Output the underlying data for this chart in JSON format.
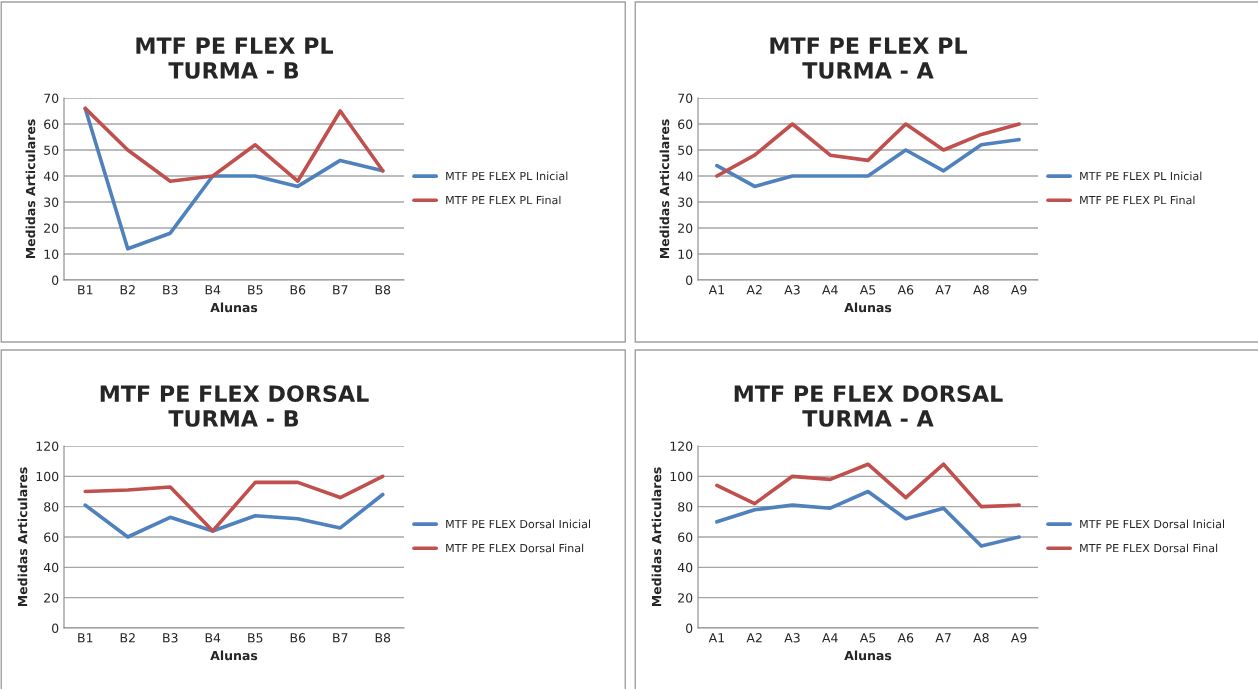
{
  "chart_data": [
    {
      "type": "line",
      "title": "MTF PE FLEX PL\nTURMA - B",
      "xlabel": "Alunas",
      "ylabel": "Medidas Articulares",
      "categories": [
        "B1",
        "B2",
        "B3",
        "B4",
        "B5",
        "B6",
        "B7",
        "B8"
      ],
      "series": [
        {
          "name": "MTF PE FLEX PL Inicial",
          "color": "#4f81bd",
          "values": [
            66,
            12,
            18,
            40,
            40,
            36,
            46,
            42
          ]
        },
        {
          "name": "MTF PE FLEX PL Final",
          "color": "#c0504d",
          "values": [
            66,
            50,
            38,
            40,
            52,
            38,
            65,
            42
          ]
        }
      ],
      "ylim": [
        0,
        70
      ],
      "yticks": [
        0,
        10,
        20,
        30,
        40,
        50,
        60,
        70
      ],
      "grid": "y",
      "legend": "right",
      "marker": "none",
      "line_style": "solid"
    },
    {
      "type": "line",
      "title": "MTF PE FLEX PL\nTURMA - A",
      "xlabel": "Alunas",
      "ylabel": "Medidas Articulares",
      "categories": [
        "A1",
        "A2",
        "A3",
        "A4",
        "A5",
        "A6",
        "A7",
        "A8",
        "A9"
      ],
      "series": [
        {
          "name": "MTF PE FLEX PL Inicial",
          "color": "#4f81bd",
          "values": [
            44,
            36,
            40,
            40,
            40,
            50,
            42,
            52,
            54
          ]
        },
        {
          "name": "MTF PE FLEX PL Final",
          "color": "#c0504d",
          "values": [
            40,
            48,
            60,
            48,
            46,
            60,
            50,
            56,
            60
          ]
        }
      ],
      "ylim": [
        0,
        70
      ],
      "yticks": [
        0,
        10,
        20,
        30,
        40,
        50,
        60,
        70
      ],
      "grid": "y",
      "legend": "right",
      "marker": "none",
      "line_style": "solid"
    },
    {
      "type": "line",
      "title": "MTF PE FLEX DORSAL\nTURMA - B",
      "xlabel": "Alunas",
      "ylabel": "Medidas Articulares",
      "categories": [
        "B1",
        "B2",
        "B3",
        "B4",
        "B5",
        "B6",
        "B7",
        "B8"
      ],
      "series": [
        {
          "name": "MTF PE FLEX Dorsal Inicial",
          "color": "#4f81bd",
          "values": [
            81,
            60,
            73,
            64,
            74,
            72,
            66,
            88
          ]
        },
        {
          "name": "MTF PE FLEX Dorsal Final",
          "color": "#c0504d",
          "values": [
            90,
            91,
            93,
            64,
            96,
            96,
            86,
            100
          ]
        }
      ],
      "ylim": [
        0,
        120
      ],
      "yticks": [
        0,
        20,
        40,
        60,
        80,
        100,
        120
      ],
      "grid": "y",
      "legend": "right",
      "marker": "none",
      "line_style": "solid"
    },
    {
      "type": "line",
      "title": "MTF PE FLEX DORSAL\nTURMA - A",
      "xlabel": "Alunas",
      "ylabel": "Medidas Articulares",
      "categories": [
        "A1",
        "A2",
        "A3",
        "A4",
        "A5",
        "A6",
        "A7",
        "A8",
        "A9"
      ],
      "series": [
        {
          "name": "MTF PE FLEX Dorsal Inicial",
          "color": "#4f81bd",
          "values": [
            70,
            78,
            81,
            79,
            90,
            72,
            79,
            54,
            60
          ]
        },
        {
          "name": "MTF PE FLEX Dorsal Final",
          "color": "#c0504d",
          "values": [
            94,
            82,
            100,
            98,
            108,
            86,
            108,
            80,
            81
          ]
        }
      ],
      "ylim": [
        0,
        120
      ],
      "yticks": [
        0,
        20,
        40,
        60,
        80,
        100,
        120
      ],
      "grid": "y",
      "legend": "right",
      "marker": "none",
      "line_style": "solid"
    }
  ]
}
